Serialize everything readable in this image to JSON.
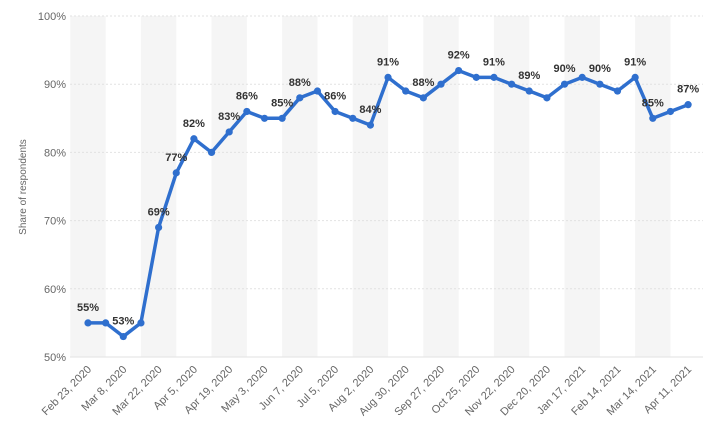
{
  "chart_data": {
    "type": "line",
    "title": "",
    "xlabel": "",
    "ylabel": "Share of respondents",
    "ylim": [
      50,
      100
    ],
    "yticks": [
      50,
      60,
      70,
      80,
      90,
      100
    ],
    "ytick_labels": [
      "50%",
      "60%",
      "70%",
      "80%",
      "90%",
      "100%"
    ],
    "grid": true,
    "line_color": "#2f6fce",
    "x_tick_labels": [
      "Feb 23, 2020",
      "Mar 8, 2020",
      "Mar 22, 2020",
      "Apr 5, 2020",
      "Apr 19, 2020",
      "May 3, 2020",
      "Jun 7, 2020",
      "Jul 5, 2020",
      "Aug 2, 2020",
      "Aug 30, 2020",
      "Sep 27, 2020",
      "Oct 25, 2020",
      "Nov 22, 2020",
      "Dec 20, 2020",
      "Jan 17, 2021",
      "Feb 14, 2021",
      "Mar 14, 2021",
      "Apr 11, 2021"
    ],
    "x_tick_positions": [
      0,
      2,
      4,
      6,
      8,
      10,
      12,
      14,
      16,
      18,
      20,
      22,
      24,
      26,
      28,
      30,
      32,
      34
    ],
    "values": [
      55,
      55,
      53,
      55,
      69,
      77,
      82,
      80,
      83,
      86,
      85,
      85,
      88,
      89,
      86,
      85,
      84,
      91,
      89,
      88,
      90,
      92,
      91,
      91,
      90,
      89,
      88,
      90,
      91,
      90,
      89,
      91,
      85,
      86,
      87
    ],
    "data_labels": [
      {
        "index": 0,
        "text": "55%"
      },
      {
        "index": 2,
        "text": "53%"
      },
      {
        "index": 4,
        "text": "69%"
      },
      {
        "index": 5,
        "text": "77%"
      },
      {
        "index": 6,
        "text": "82%"
      },
      {
        "index": 8,
        "text": "83%"
      },
      {
        "index": 9,
        "text": "86%"
      },
      {
        "index": 11,
        "text": "85%"
      },
      {
        "index": 12,
        "text": "88%"
      },
      {
        "index": 14,
        "text": "86%"
      },
      {
        "index": 16,
        "text": "84%"
      },
      {
        "index": 17,
        "text": "91%"
      },
      {
        "index": 19,
        "text": "88%"
      },
      {
        "index": 21,
        "text": "92%"
      },
      {
        "index": 23,
        "text": "91%"
      },
      {
        "index": 25,
        "text": "89%"
      },
      {
        "index": 27,
        "text": "90%"
      },
      {
        "index": 29,
        "text": "90%"
      },
      {
        "index": 31,
        "text": "91%"
      },
      {
        "index": 32,
        "text": "85%"
      },
      {
        "index": 34,
        "text": "87%"
      }
    ]
  }
}
